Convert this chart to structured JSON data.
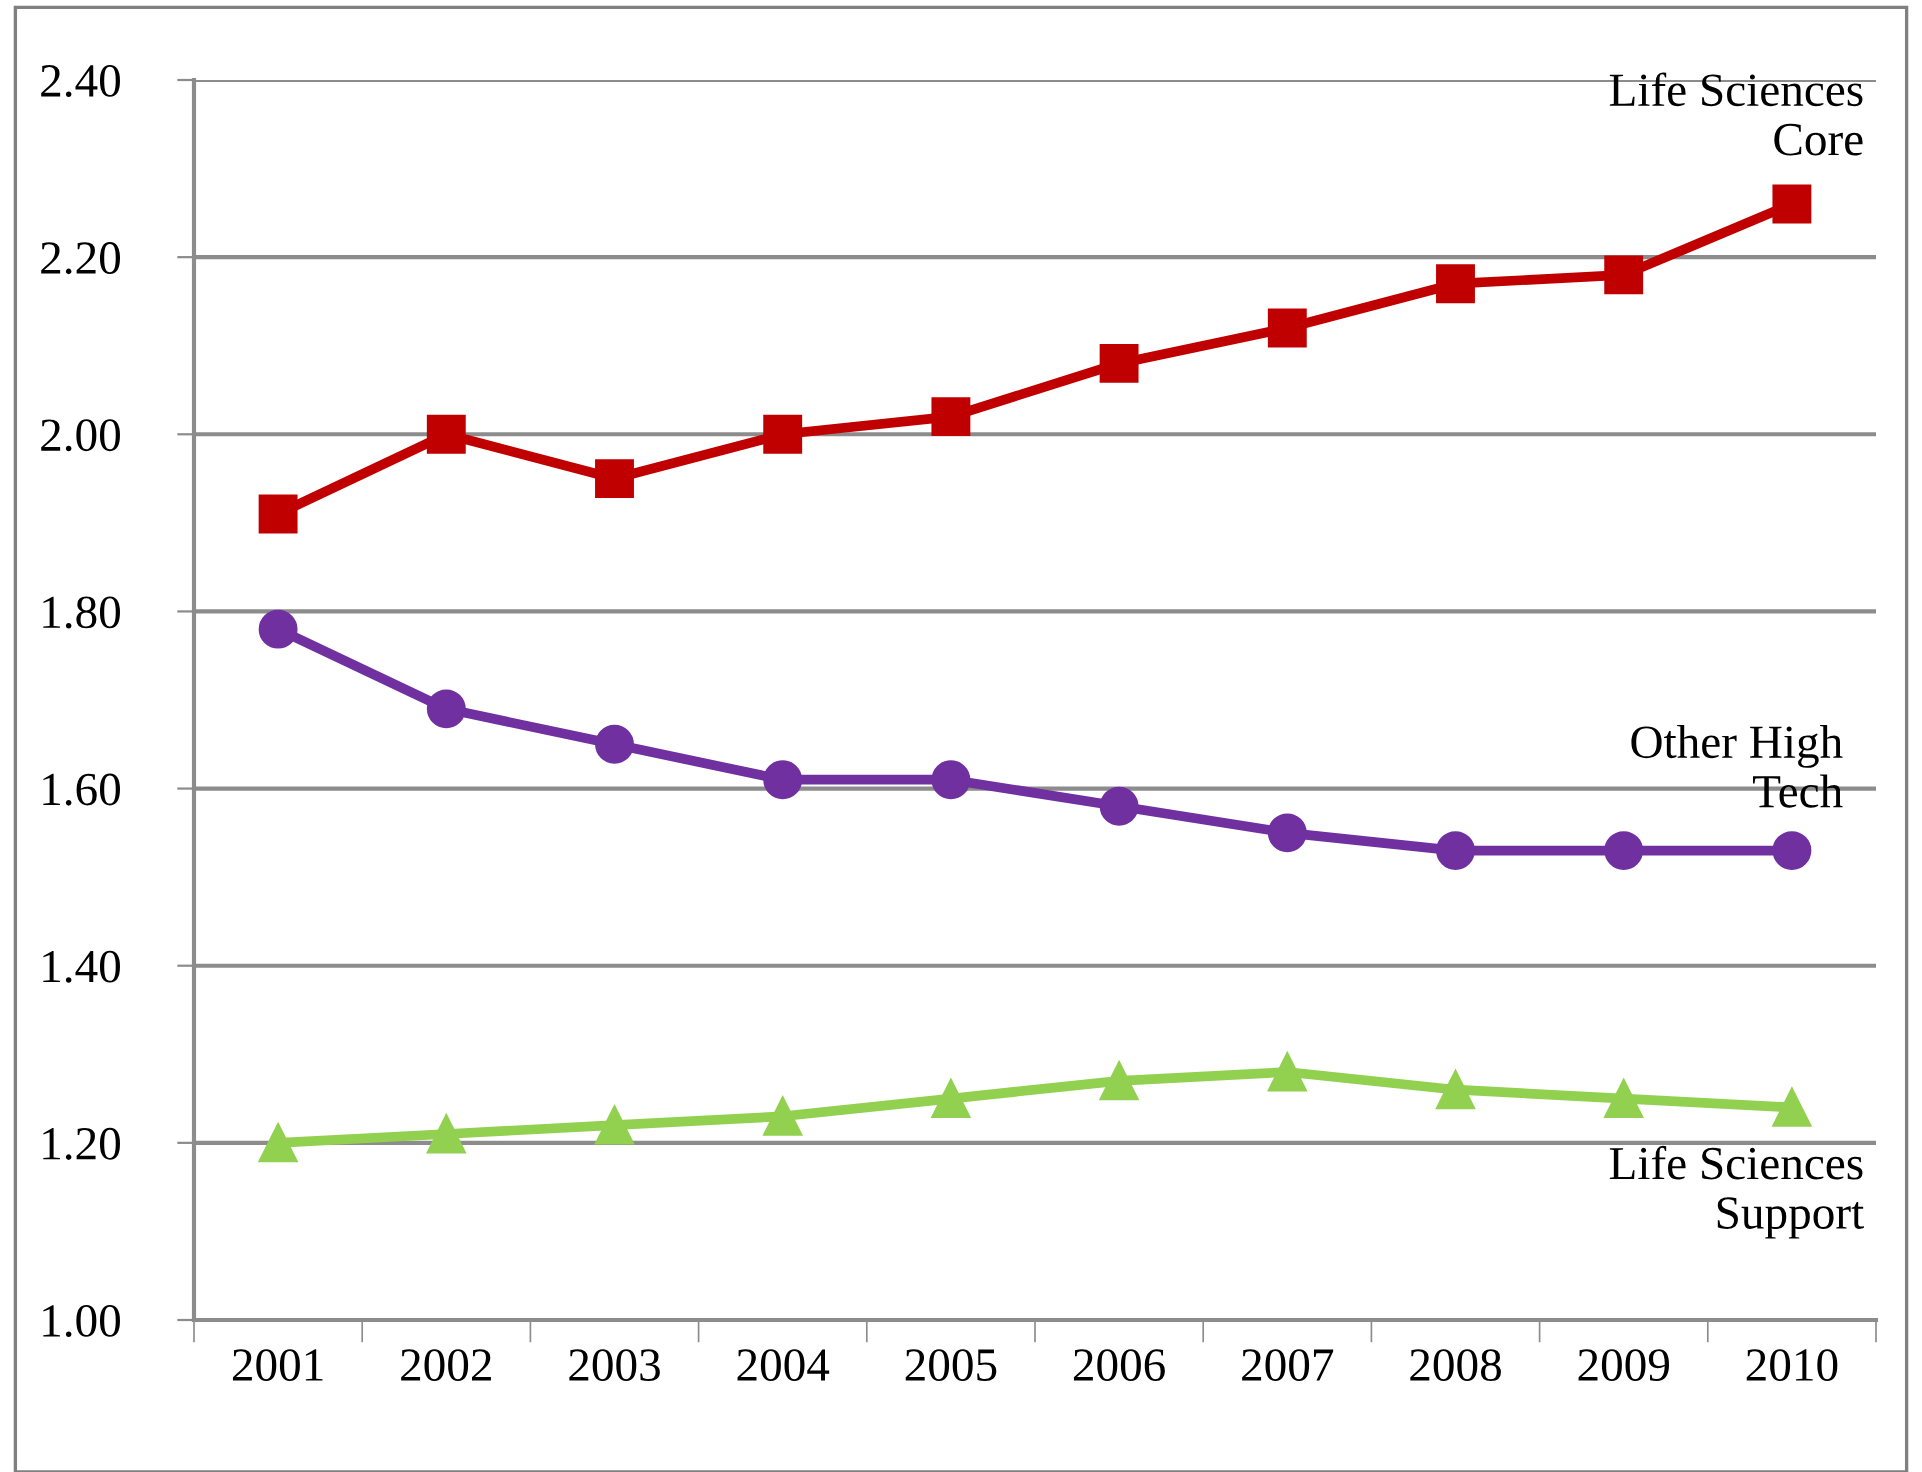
{
  "chart_data": {
    "type": "line",
    "categories": [
      "2001",
      "2002",
      "2003",
      "2004",
      "2005",
      "2006",
      "2007",
      "2008",
      "2009",
      "2010"
    ],
    "ylim": [
      1.0,
      2.4
    ],
    "yticks": [
      {
        "value": 1.0,
        "label": "1.00"
      },
      {
        "value": 1.2,
        "label": "1.20"
      },
      {
        "value": 1.4,
        "label": "1.40"
      },
      {
        "value": 1.6,
        "label": "1.60"
      },
      {
        "value": 1.8,
        "label": "1.80"
      },
      {
        "value": 2.0,
        "label": "2.00"
      },
      {
        "value": 2.2,
        "label": "2.20"
      },
      {
        "value": 2.4,
        "label": "2.40"
      }
    ],
    "grid": "y",
    "legend": false,
    "line_style": "solid",
    "series": [
      {
        "name": "Life Sciences\nCore",
        "color": "#c00000",
        "marker": "square",
        "values": [
          1.91,
          2.0,
          1.95,
          2.0,
          2.02,
          2.08,
          2.12,
          2.17,
          2.18,
          2.26
        ]
      },
      {
        "name": "Other High\nTech",
        "color": "#7030a0",
        "marker": "circle",
        "values": [
          1.78,
          1.69,
          1.65,
          1.61,
          1.61,
          1.58,
          1.55,
          1.53,
          1.53,
          1.53
        ]
      },
      {
        "name": "Life Sciences\nSupport",
        "color": "#92d050",
        "marker": "triangle",
        "values": [
          1.2,
          1.21,
          1.22,
          1.23,
          1.25,
          1.27,
          1.28,
          1.26,
          1.25,
          1.24
        ]
      }
    ]
  }
}
